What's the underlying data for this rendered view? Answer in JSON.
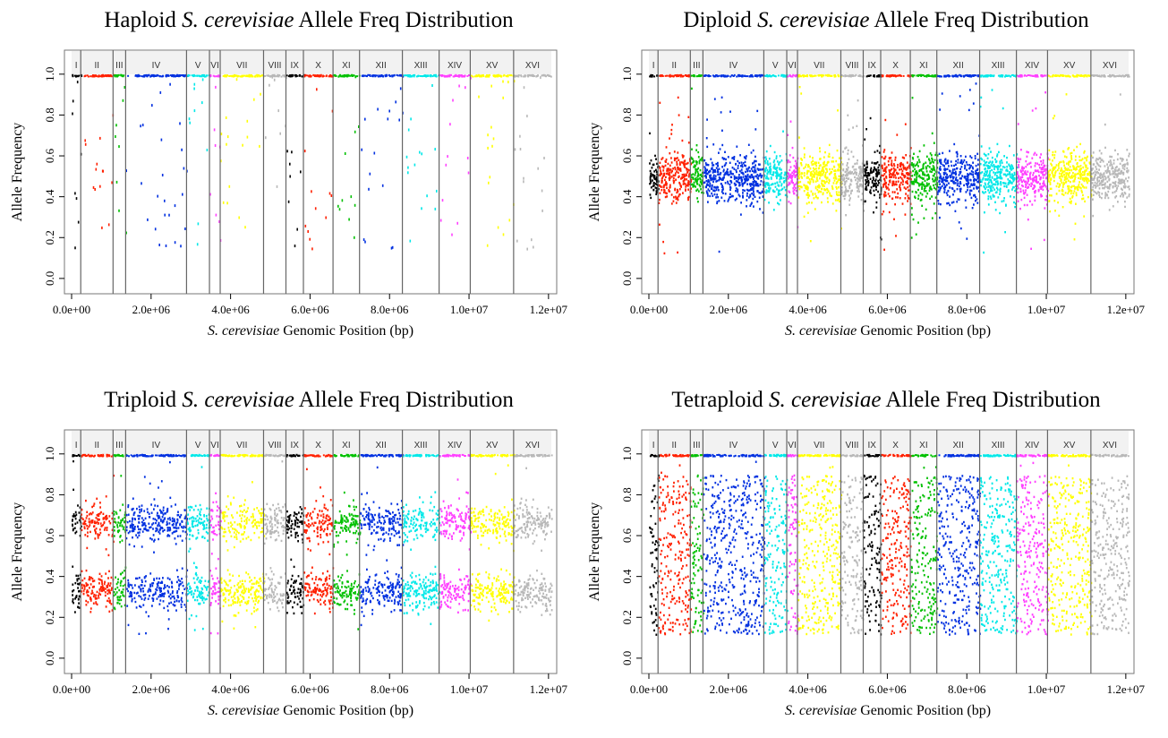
{
  "figure": {
    "x_axis_ticks": [
      "0.0e+00",
      "2.0e+06",
      "4.0e+06",
      "6.0e+06",
      "8.0e+06",
      "1.0e+07",
      "1.2e+07"
    ],
    "y_axis_ticks": [
      "0.0",
      "0.2",
      "0.4",
      "0.6",
      "0.8",
      "1.0"
    ],
    "chromosome_labels": [
      "I",
      "II",
      "III",
      "IV",
      "V",
      "VI",
      "VII",
      "VIII",
      "IX",
      "X",
      "XI",
      "XII",
      "XIII",
      "XIV",
      "XV",
      "XVI"
    ],
    "chromosome_colors": [
      "#000000",
      "#ff2000",
      "#00c000",
      "#0030e0",
      "#00e8e8",
      "#ff40ff",
      "#ffff00",
      "#b8b8b8",
      "#000000",
      "#ff2000",
      "#00c000",
      "#0030e0",
      "#00e8e8",
      "#ff40ff",
      "#ffff00",
      "#b8b8b8"
    ],
    "chromosome_boundaries": [
      0,
      230000,
      1043000,
      1360000,
      2892000,
      3469000,
      3739000,
      4830000,
      5393000,
      5833000,
      6578000,
      7245000,
      8323000,
      9247000,
      10031000,
      11122000,
      12071000
    ]
  },
  "chart_data": [
    {
      "type": "scatter",
      "title_pre": "Haploid ",
      "title_it": "S. cerevisiae",
      "title_post": " Allele Freq Distribution",
      "xlabel_it": "S. cerevisiae",
      "xlabel_post": " Genomic Position (bp)",
      "ylabel": "Allele Frequency",
      "xlim": [
        0,
        12071000
      ],
      "ylim": [
        0,
        1.05
      ],
      "ploidy": 1,
      "expected_freqs": [
        1.0
      ],
      "series_note_color_by_chromosome": true
    },
    {
      "type": "scatter",
      "title_pre": "Diploid ",
      "title_it": "S. cerevisiae",
      "title_post": " Allele Freq Distribution",
      "xlabel_it": "S. cerevisiae",
      "xlabel_post": " Genomic Position (bp)",
      "ylabel": "Allele Frequency",
      "xlim": [
        0,
        12071000
      ],
      "ylim": [
        0,
        1.05
      ],
      "ploidy": 2,
      "expected_freqs": [
        0.5,
        1.0
      ],
      "series_note_color_by_chromosome": true
    },
    {
      "type": "scatter",
      "title_pre": "Triploid ",
      "title_it": "S. cerevisiae",
      "title_post": " Allele Freq Distribution",
      "xlabel_it": "S. cerevisiae",
      "xlabel_post": " Genomic Position (bp)",
      "ylabel": "Allele Frequency",
      "xlim": [
        0,
        12071000
      ],
      "ylim": [
        0,
        1.05
      ],
      "ploidy": 3,
      "expected_freqs": [
        0.33,
        0.67,
        1.0
      ],
      "series_note_color_by_chromosome": true
    },
    {
      "type": "scatter",
      "title_pre": "Tetraploid ",
      "title_it": "S. cerevisiae",
      "title_post": " Allele Freq Distribution",
      "xlabel_it": "S. cerevisiae",
      "xlabel_post": " Genomic Position (bp)",
      "ylabel": "Allele Frequency",
      "xlim": [
        0,
        12071000
      ],
      "ylim": [
        0,
        1.05
      ],
      "ploidy": 4,
      "expected_freqs": [
        0.25,
        0.5,
        0.75,
        1.0
      ],
      "series_note_color_by_chromosome": true
    }
  ]
}
